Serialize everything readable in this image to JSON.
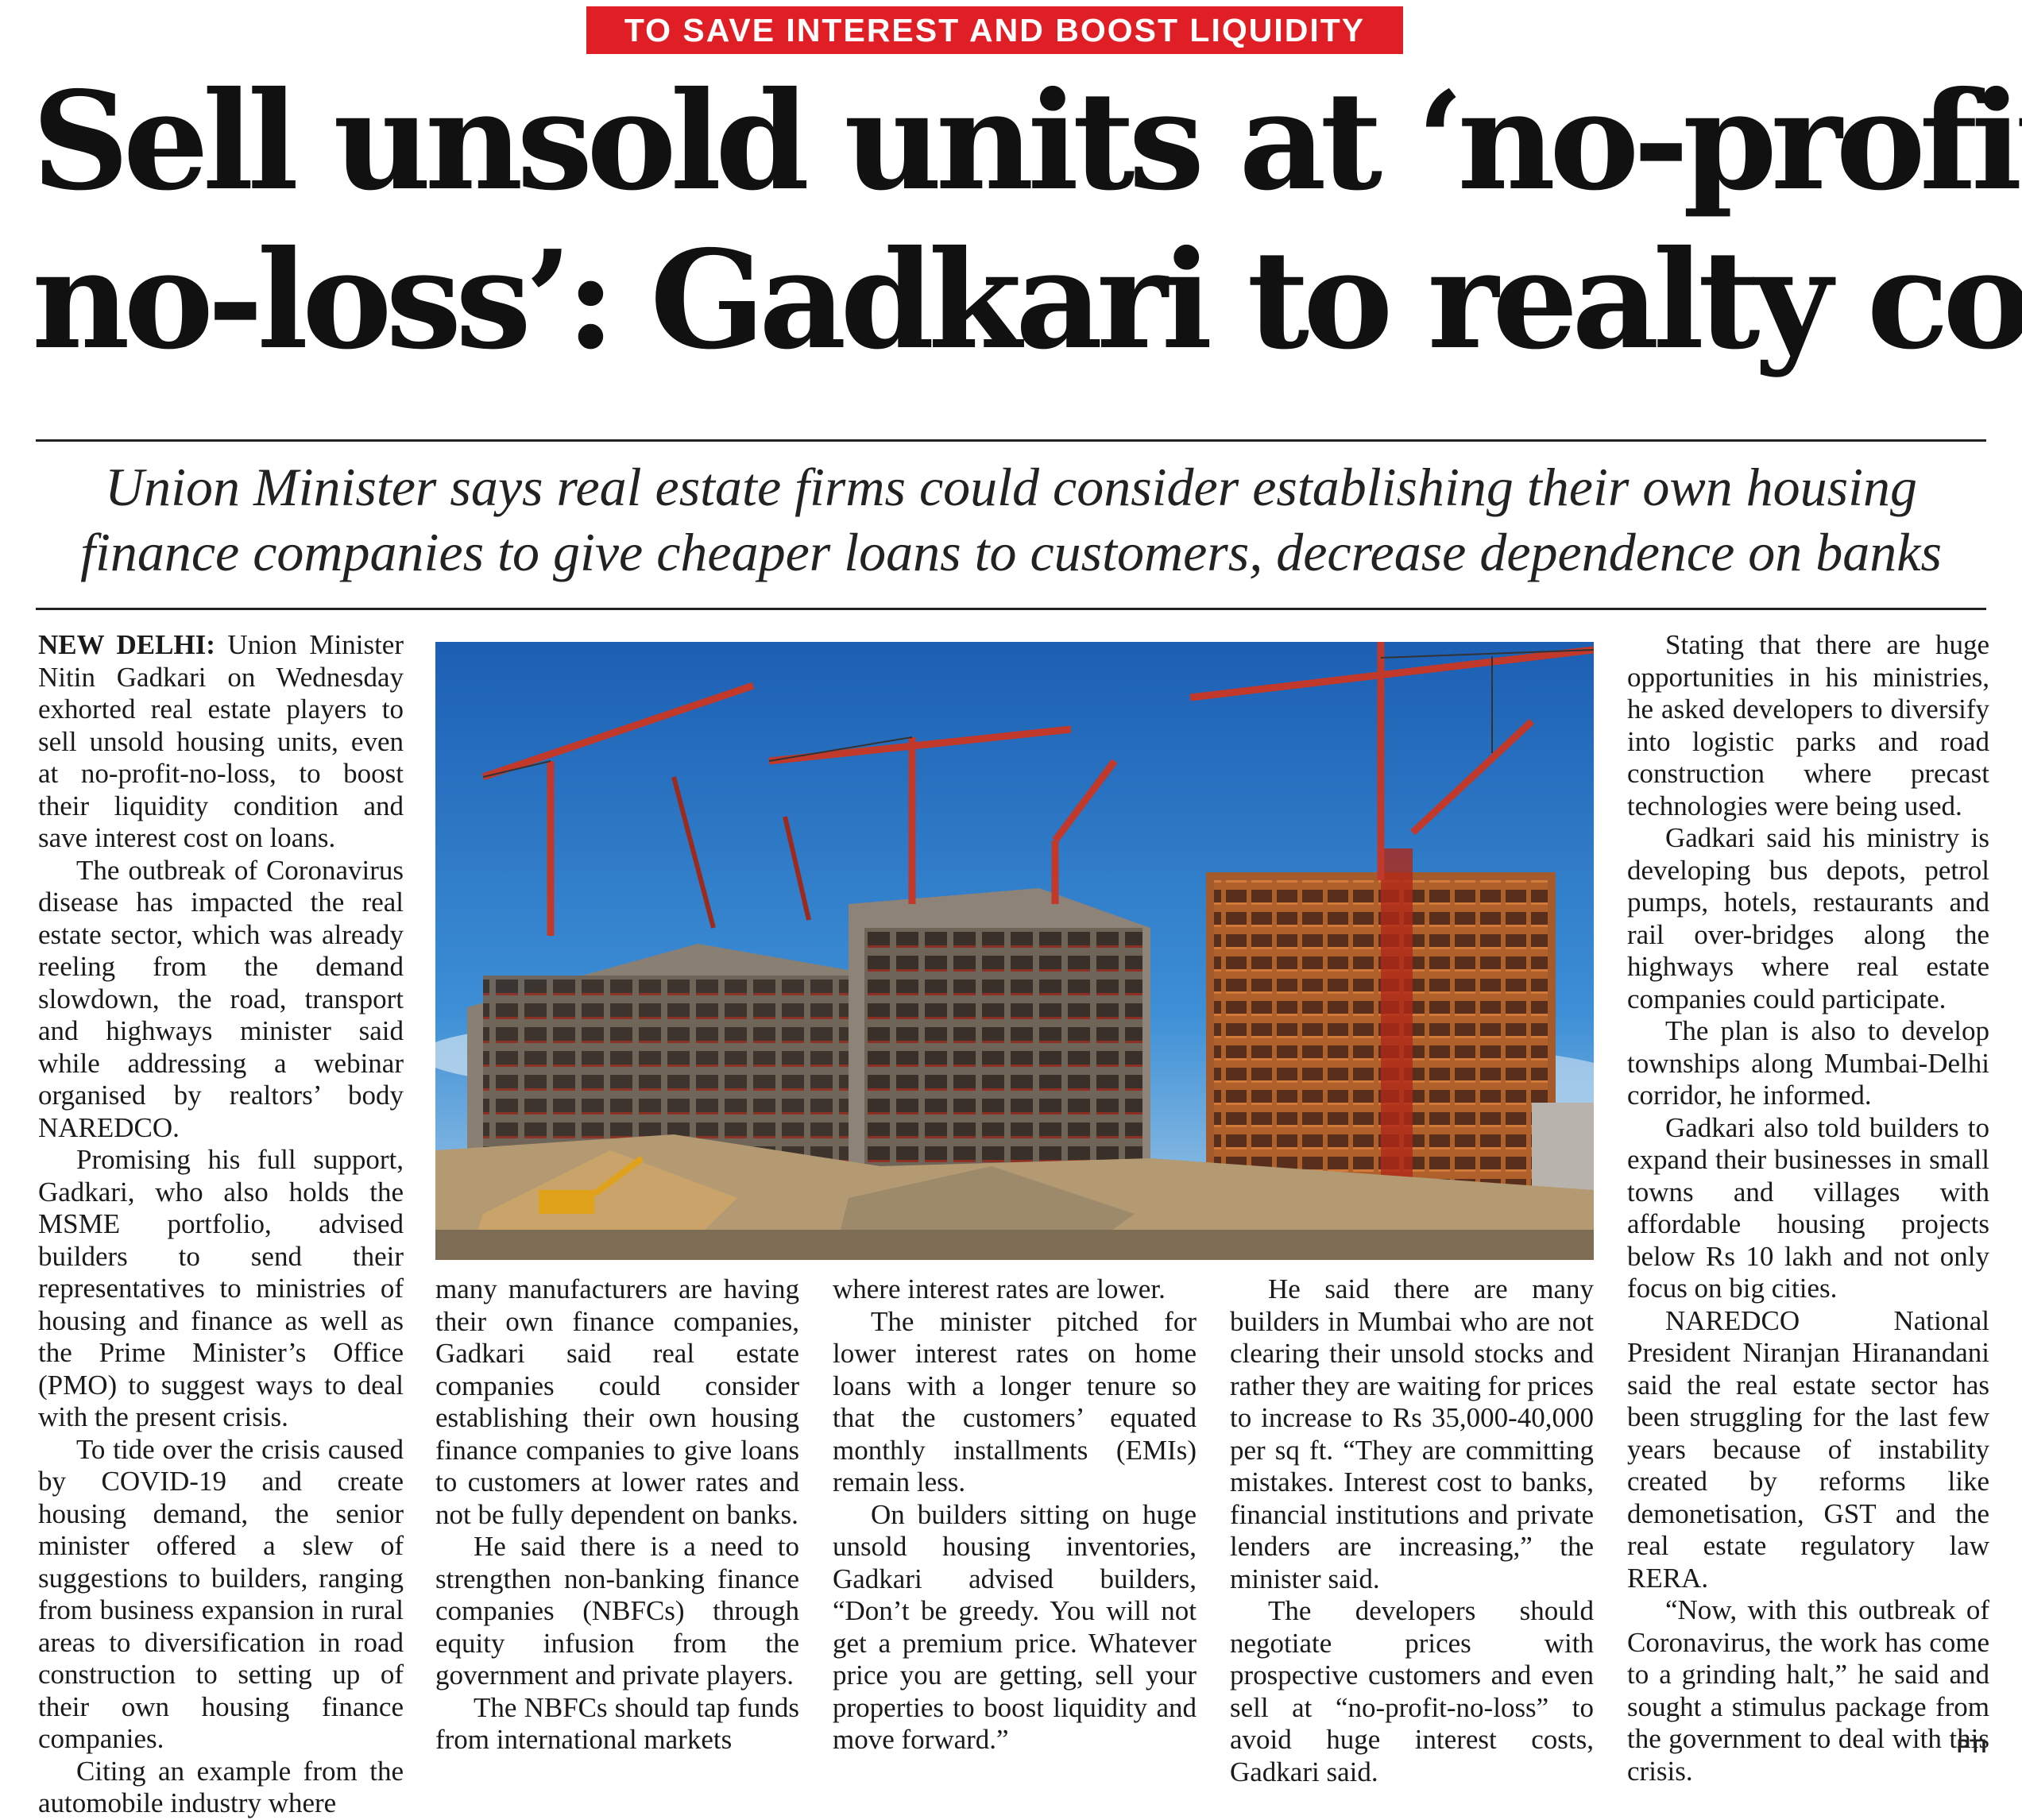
{
  "kicker": "TO SAVE INTEREST AND BOOST LIQUIDITY",
  "headline": {
    "line1": "Sell unsold units at ‘no-profit-",
    "line2": "no-loss’: Gadkari to realty cos"
  },
  "dek": {
    "line1": "Union Minister says real estate firms could consider establishing their own housing",
    "line2": "finance companies to give cheaper loans to customers, decrease dependence on banks"
  },
  "photo": {
    "subject": "construction site with tower cranes and partially built high-rise buildings under blue sky",
    "colors": {
      "sky": "#2f7fd0",
      "crane": "#c0392b",
      "concrete": "#8a7f73"
    }
  },
  "article": {
    "dateline": "NEW DELHI:",
    "col1": [
      "Union Minister Nitin Gadkari on Wednesday exhorted real estate players to sell unsold housing units, even at no-profit-no-loss, to boost their liquidity condition and save interest cost on loans.",
      "The outbreak of Coronavirus disease has impacted the real estate sector, which was already reeling from the demand slowdown, the road, transport and highways minister said while addressing a webinar organised by realtors’ body NAREDCO.",
      "Promising his full support, Gadkari, who also holds the MSME portfolio, advised builders to send their representatives to ministries of housing and finance as well as the Prime Minister’s Office (PMO) to suggest ways to deal with the present crisis.",
      "To tide over the crisis caused by COVID-19 and create housing demand, the senior minister offered a slew of suggestions to builders, ranging from business expansion in rural areas to diversification in road construction to setting up of their own housing finance companies.",
      "Citing an example from the automobile industry where"
    ],
    "col2": [
      "many manufacturers are having their own finance companies, Gadkari said real estate companies could consider establishing their own housing finance companies to give loans to customers at lower rates and not be fully dependent on banks.",
      "He said there is a need to strengthen non-banking finance companies (NBFCs) through equity infusion from the government and private players.",
      "The NBFCs should tap funds from international markets"
    ],
    "col3": [
      "where interest rates are lower.",
      "The minister pitched for lower interest rates on home loans with a longer tenure so that the customers’ equated monthly installments (EMIs) remain less.",
      "On builders sitting on huge unsold housing inventories, Gadkari advised builders, “Don’t be greedy. You will not get a premium price. Whatever price you are getting, sell your properties to boost liquidity and move forward.”"
    ],
    "col4": [
      "He said there are many builders in Mumbai who are not clearing their unsold stocks and rather they are waiting for prices to increase to Rs 35,000-40,000 per sq ft. “They are committing mistakes. Interest cost to banks, financial institutions and private lenders are increasing,” the minister said.",
      "The developers should negotiate prices with prospective customers and even sell at “no-profit-no-loss” to avoid huge interest costs, Gadkari said."
    ],
    "col5": [
      "Stating that there are huge opportunities in his ministries, he asked developers to diversify into logistic parks and road construction where precast technologies were being used.",
      "Gadkari said his ministry is developing bus depots, petrol pumps, hotels, restaurants and rail over-bridges along the highways where real estate companies could participate.",
      "The plan is also to develop townships along Mumbai-Delhi corridor, he informed.",
      "Gadkari also told builders to expand their businesses in small towns and villages with affordable housing projects below Rs 10 lakh and not only focus on big cities.",
      "NAREDCO National President Niranjan Hiranandani said the real estate sector has been struggling for the last few years because of instability created by reforms like demonetisation, GST and the real estate regulatory law RERA.",
      "“Now, with this outbreak of Coronavirus, the work has come to a grinding halt,” he said and sought a stimulus package from the government to deal with this crisis."
    ],
    "credit": "PTI"
  }
}
